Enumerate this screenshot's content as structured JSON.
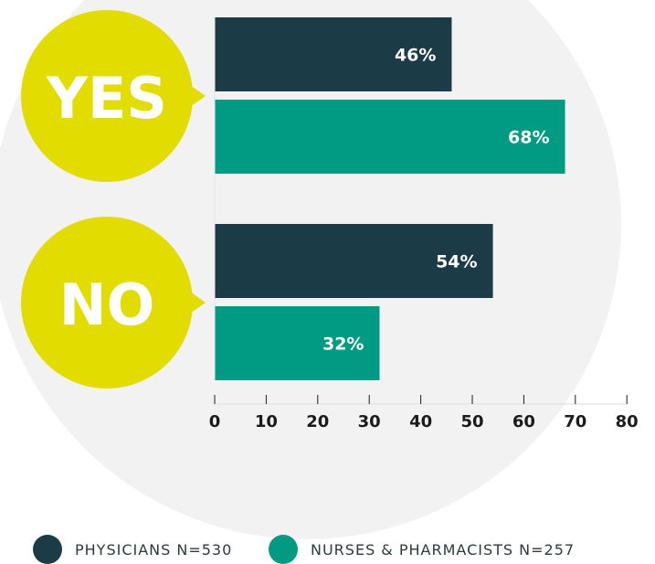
{
  "colors": {
    "physicians": "#1b3b47",
    "nurses": "#009b82",
    "bubble": "#e2dc00",
    "background_circle": "#f2f2f2",
    "bar_label": "#ffffff",
    "axis_text": "#1b1b1b"
  },
  "legend": {
    "items": [
      {
        "label": "PHYSICIANS N=530",
        "color_key": "physicians"
      },
      {
        "label": "NURSES & PHARMACISTS  N=257",
        "color_key": "nurses"
      }
    ]
  },
  "chart_data": {
    "type": "bar",
    "orientation": "horizontal",
    "categories": [
      "YES",
      "NO"
    ],
    "series": [
      {
        "name": "PHYSICIANS N=530",
        "values": [
          46,
          54
        ],
        "labels": [
          "46%",
          "54%"
        ]
      },
      {
        "name": "NURSES & PHARMACISTS  N=257",
        "values": [
          68,
          32
        ],
        "labels": [
          "68%",
          "32%"
        ]
      }
    ],
    "xlim": [
      0,
      80
    ],
    "xticks": [
      0,
      10,
      20,
      30,
      40,
      50,
      60,
      70,
      80
    ],
    "grid": false,
    "legend_position": "bottom"
  }
}
